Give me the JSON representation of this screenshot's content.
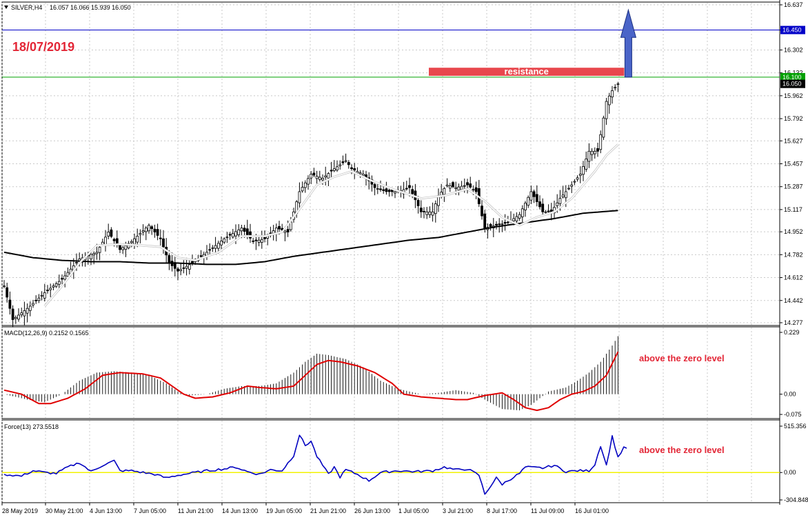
{
  "window": {
    "symbol_title": "SILVER,H4",
    "ohlc_readout": "16.057 16.066 15.939 16.050",
    "menu_icon": "triangle-down-icon"
  },
  "overlay_text": {
    "date": "18/07/2019",
    "resistance_label": "resistance",
    "macd_annotation": "above the zero level",
    "force_annotation": "above the zero level"
  },
  "colors": {
    "background": "#ffffff",
    "grid": "#c8c8c8",
    "candle": "#000000",
    "ma_slow": "#000000",
    "ma_fast": "#ffffff",
    "macd_signal": "#e00000",
    "force": "#0000c0",
    "zero_line": "#f2f200",
    "resistance_box": "#e8474d",
    "blue_line": "#0000c8",
    "green_line": "#00a000",
    "arrow": "#4a64c8",
    "annotation": "#e32636"
  },
  "chart_data": [
    {
      "type": "candlestick",
      "title": "SILVER,H4",
      "ylim": [
        14.277,
        16.637
      ],
      "yticks": [
        "16.637",
        "16.450",
        "16.302",
        "16.132",
        "15.962",
        "15.792",
        "15.627",
        "15.457",
        "15.287",
        "15.117",
        "14.952",
        "14.782",
        "14.612",
        "14.442",
        "14.277"
      ],
      "x_labels": [
        "28 May 2019",
        "30 May 21:00",
        "4 Jun 13:00",
        "7 Jun 05:00",
        "11 Jun 21:00",
        "14 Jun 13:00",
        "19 Jun 05:00",
        "21 Jun 21:00",
        "26 Jun 13:00",
        "1 Jul 05:00",
        "3 Jul 21:00",
        "8 Jul 17:00",
        "11 Jul 09:00",
        "16 Jul 01:00"
      ],
      "close_anchors": [
        [
          0,
          14.55
        ],
        [
          3,
          14.3
        ],
        [
          9,
          14.4
        ],
        [
          14,
          14.5
        ],
        [
          20,
          14.6
        ],
        [
          26,
          14.75
        ],
        [
          32,
          14.8
        ],
        [
          36,
          14.95
        ],
        [
          40,
          14.82
        ],
        [
          44,
          14.88
        ],
        [
          50,
          15.0
        ],
        [
          54,
          14.9
        ],
        [
          57,
          14.72
        ],
        [
          60,
          14.66
        ],
        [
          65,
          14.72
        ],
        [
          70,
          14.8
        ],
        [
          76,
          14.9
        ],
        [
          82,
          14.98
        ],
        [
          86,
          14.88
        ],
        [
          90,
          14.9
        ],
        [
          94,
          14.98
        ],
        [
          98,
          14.95
        ],
        [
          102,
          15.25
        ],
        [
          106,
          15.38
        ],
        [
          110,
          15.35
        ],
        [
          114,
          15.42
        ],
        [
          118,
          15.48
        ],
        [
          120,
          15.42
        ],
        [
          124,
          15.38
        ],
        [
          128,
          15.28
        ],
        [
          132,
          15.25
        ],
        [
          136,
          15.25
        ],
        [
          140,
          15.28
        ],
        [
          144,
          15.1
        ],
        [
          148,
          15.1
        ],
        [
          150,
          15.22
        ],
        [
          153,
          15.3
        ],
        [
          156,
          15.28
        ],
        [
          160,
          15.3
        ],
        [
          163,
          15.25
        ],
        [
          166,
          14.98
        ],
        [
          170,
          15.0
        ],
        [
          174,
          15.02
        ],
        [
          178,
          15.08
        ],
        [
          182,
          15.25
        ],
        [
          186,
          15.1
        ],
        [
          189,
          15.1
        ],
        [
          192,
          15.2
        ],
        [
          196,
          15.3
        ],
        [
          199,
          15.38
        ],
        [
          202,
          15.55
        ],
        [
          205,
          15.55
        ],
        [
          208,
          15.92
        ],
        [
          210,
          16.0
        ],
        [
          212,
          16.05
        ]
      ],
      "fast_ma_anchors": [
        [
          14,
          14.4
        ],
        [
          20,
          14.55
        ],
        [
          26,
          14.72
        ],
        [
          32,
          14.85
        ],
        [
          40,
          14.86
        ],
        [
          48,
          14.85
        ],
        [
          54,
          14.84
        ],
        [
          60,
          14.76
        ],
        [
          66,
          14.74
        ],
        [
          74,
          14.8
        ],
        [
          82,
          14.92
        ],
        [
          90,
          14.92
        ],
        [
          96,
          14.95
        ],
        [
          102,
          15.12
        ],
        [
          108,
          15.3
        ],
        [
          114,
          15.36
        ],
        [
          120,
          15.4
        ],
        [
          126,
          15.34
        ],
        [
          134,
          15.27
        ],
        [
          144,
          15.2
        ],
        [
          152,
          15.22
        ],
        [
          160,
          15.27
        ],
        [
          166,
          15.18
        ],
        [
          172,
          15.06
        ],
        [
          178,
          15.0
        ],
        [
          184,
          15.06
        ],
        [
          190,
          15.1
        ],
        [
          196,
          15.2
        ],
        [
          200,
          15.3
        ],
        [
          204,
          15.4
        ],
        [
          208,
          15.52
        ],
        [
          212,
          15.6
        ]
      ],
      "slow_ma_anchors": [
        [
          0,
          14.8
        ],
        [
          10,
          14.76
        ],
        [
          20,
          14.74
        ],
        [
          30,
          14.73
        ],
        [
          40,
          14.73
        ],
        [
          50,
          14.72
        ],
        [
          60,
          14.72
        ],
        [
          70,
          14.71
        ],
        [
          80,
          14.71
        ],
        [
          90,
          14.73
        ],
        [
          100,
          14.77
        ],
        [
          110,
          14.8
        ],
        [
          120,
          14.83
        ],
        [
          130,
          14.86
        ],
        [
          140,
          14.89
        ],
        [
          150,
          14.91
        ],
        [
          160,
          14.95
        ],
        [
          170,
          14.99
        ],
        [
          180,
          15.02
        ],
        [
          190,
          15.05
        ],
        [
          200,
          15.09
        ],
        [
          212,
          15.11
        ]
      ],
      "levels": [
        {
          "value": 16.45,
          "label": "16.450",
          "color": "#0000c8"
        },
        {
          "value": 16.1,
          "label": "16.100",
          "color": "#00a000"
        },
        {
          "value": 16.05,
          "label": "16.050",
          "color": "#000000"
        }
      ],
      "resistance_zone": {
        "from_index": 150,
        "to_index": 212,
        "low": 16.11,
        "high": 16.17
      },
      "arrow": {
        "index": 217,
        "from": 16.1,
        "to": 16.6
      }
    },
    {
      "type": "histogram+line",
      "title": "MACD(12,26,9) 0.2152 0.1565",
      "ylim": [
        -0.075,
        0.229
      ],
      "yticks": [
        "0.229",
        "0.00",
        "-0.075"
      ],
      "main_anchors": [
        [
          0,
          0.0
        ],
        [
          8,
          -0.02
        ],
        [
          14,
          -0.03
        ],
        [
          20,
          0.0
        ],
        [
          26,
          0.05
        ],
        [
          32,
          0.08
        ],
        [
          38,
          0.085
        ],
        [
          44,
          0.08
        ],
        [
          50,
          0.07
        ],
        [
          56,
          0.04
        ],
        [
          60,
          0.01
        ],
        [
          64,
          -0.005
        ],
        [
          70,
          0.0
        ],
        [
          76,
          0.02
        ],
        [
          82,
          0.03
        ],
        [
          88,
          0.03
        ],
        [
          94,
          0.04
        ],
        [
          100,
          0.08
        ],
        [
          104,
          0.12
        ],
        [
          108,
          0.15
        ],
        [
          112,
          0.145
        ],
        [
          118,
          0.13
        ],
        [
          124,
          0.1
        ],
        [
          130,
          0.05
        ],
        [
          136,
          0.02
        ],
        [
          144,
          0.0
        ],
        [
          150,
          0.005
        ],
        [
          156,
          0.015
        ],
        [
          162,
          0.005
        ],
        [
          166,
          -0.02
        ],
        [
          172,
          -0.055
        ],
        [
          178,
          -0.06
        ],
        [
          182,
          -0.04
        ],
        [
          188,
          0.01
        ],
        [
          194,
          0.025
        ],
        [
          198,
          0.05
        ],
        [
          202,
          0.08
        ],
        [
          206,
          0.12
        ],
        [
          210,
          0.18
        ],
        [
          212,
          0.215
        ]
      ],
      "signal_anchors": [
        [
          0,
          0.015
        ],
        [
          6,
          0.0
        ],
        [
          12,
          -0.035
        ],
        [
          16,
          -0.035
        ],
        [
          22,
          -0.015
        ],
        [
          28,
          0.02
        ],
        [
          34,
          0.07
        ],
        [
          40,
          0.08
        ],
        [
          48,
          0.075
        ],
        [
          54,
          0.06
        ],
        [
          58,
          0.03
        ],
        [
          62,
          0.0
        ],
        [
          66,
          -0.015
        ],
        [
          72,
          -0.01
        ],
        [
          78,
          0.005
        ],
        [
          84,
          0.03
        ],
        [
          88,
          0.025
        ],
        [
          94,
          0.02
        ],
        [
          100,
          0.03
        ],
        [
          104,
          0.07
        ],
        [
          108,
          0.11
        ],
        [
          112,
          0.125
        ],
        [
          116,
          0.12
        ],
        [
          122,
          0.105
        ],
        [
          128,
          0.08
        ],
        [
          134,
          0.04
        ],
        [
          138,
          0.0
        ],
        [
          144,
          -0.01
        ],
        [
          150,
          -0.015
        ],
        [
          156,
          -0.02
        ],
        [
          160,
          -0.02
        ],
        [
          166,
          -0.005
        ],
        [
          172,
          0.005
        ],
        [
          176,
          -0.02
        ],
        [
          180,
          -0.05
        ],
        [
          184,
          -0.06
        ],
        [
          188,
          -0.05
        ],
        [
          192,
          -0.02
        ],
        [
          196,
          0.0
        ],
        [
          200,
          0.01
        ],
        [
          204,
          0.03
        ],
        [
          208,
          0.07
        ],
        [
          212,
          0.157
        ]
      ]
    },
    {
      "type": "line",
      "title": "Force(13) 273.5518",
      "ylim": [
        -304.848,
        515.356
      ],
      "yticks": [
        "515.356",
        "0.00",
        "-304.848"
      ],
      "anchors": [
        [
          0,
          -20
        ],
        [
          6,
          -40
        ],
        [
          10,
          20
        ],
        [
          14,
          0
        ],
        [
          18,
          -10
        ],
        [
          22,
          60
        ],
        [
          26,
          110
        ],
        [
          30,
          10
        ],
        [
          34,
          80
        ],
        [
          38,
          130
        ],
        [
          40,
          20
        ],
        [
          44,
          20
        ],
        [
          48,
          0
        ],
        [
          52,
          -20
        ],
        [
          56,
          -60
        ],
        [
          60,
          -30
        ],
        [
          64,
          -10
        ],
        [
          70,
          20
        ],
        [
          76,
          40
        ],
        [
          80,
          60
        ],
        [
          84,
          10
        ],
        [
          88,
          -20
        ],
        [
          92,
          30
        ],
        [
          96,
          20
        ],
        [
          100,
          190
        ],
        [
          102,
          420
        ],
        [
          104,
          300
        ],
        [
          106,
          350
        ],
        [
          108,
          180
        ],
        [
          110,
          80
        ],
        [
          112,
          -20
        ],
        [
          114,
          60
        ],
        [
          116,
          -50
        ],
        [
          118,
          30
        ],
        [
          122,
          -20
        ],
        [
          126,
          -90
        ],
        [
          130,
          0
        ],
        [
          136,
          20
        ],
        [
          142,
          10
        ],
        [
          148,
          20
        ],
        [
          152,
          60
        ],
        [
          156,
          30
        ],
        [
          160,
          40
        ],
        [
          164,
          -30
        ],
        [
          166,
          -240
        ],
        [
          170,
          -60
        ],
        [
          172,
          -130
        ],
        [
          176,
          -50
        ],
        [
          178,
          -10
        ],
        [
          180,
          60
        ],
        [
          186,
          50
        ],
        [
          190,
          80
        ],
        [
          194,
          10
        ],
        [
          198,
          20
        ],
        [
          202,
          20
        ],
        [
          204,
          90
        ],
        [
          206,
          300
        ],
        [
          208,
          80
        ],
        [
          210,
          400
        ],
        [
          212,
          170
        ],
        [
          214,
          273
        ]
      ]
    }
  ]
}
